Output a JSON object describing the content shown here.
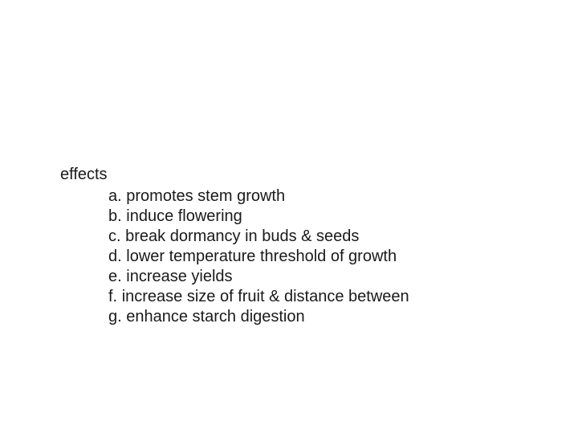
{
  "text_color": "#1a1a1a",
  "background_color": "#ffffff",
  "font_size_pt": 20,
  "heading": "effects",
  "items": [
    {
      "letter": "a.",
      "text": "promotes stem growth"
    },
    {
      "letter": "b.",
      "text": "induce flowering"
    },
    {
      "letter": "c.",
      "text": "break dormancy in buds & seeds"
    },
    {
      "letter": "d.",
      "text": "lower temperature threshold of growth"
    },
    {
      "letter": "e.",
      "text": "increase yields"
    },
    {
      "letter": "f.",
      "text": "increase size of fruit & distance between"
    },
    {
      "letter": "g.",
      "text": "enhance starch digestion"
    }
  ]
}
